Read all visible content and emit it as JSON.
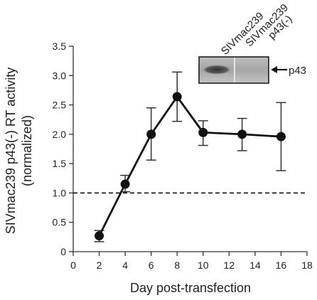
{
  "chart_data": {
    "type": "line",
    "xlabel": "Day post-transfection",
    "ylabel_line1": "SIVmac239 p43(-) RT activity",
    "ylabel_line2": "(normalized)",
    "xlim": [
      0,
      18
    ],
    "ylim": [
      0,
      3.5
    ],
    "x_ticks": [
      "0",
      "2",
      "4",
      "6",
      "8",
      "10",
      "12",
      "14",
      "16",
      "18"
    ],
    "y_ticks": [
      "0",
      "0.5",
      "1.0",
      "1.5",
      "2.0",
      "2.5",
      "3.0",
      "3.5"
    ],
    "grid": false,
    "reference_line": {
      "y": 1.0,
      "style": "dashed"
    },
    "series": [
      {
        "x": [
          2,
          4,
          6,
          8,
          10,
          13,
          16
        ],
        "y": [
          0.27,
          1.15,
          2.0,
          2.64,
          2.03,
          2.0,
          1.96
        ],
        "error_low": [
          0.17,
          1.02,
          1.56,
          2.22,
          1.81,
          1.72,
          1.38
        ],
        "error_high": [
          0.36,
          1.3,
          2.45,
          3.06,
          2.23,
          2.27,
          2.54
        ]
      }
    ],
    "inset": {
      "lane_labels": [
        "SIVmac239",
        "SIVmac239\np43(-)"
      ],
      "band_label": "p43"
    }
  },
  "colors": {
    "line": "#111111",
    "axis": "#333333",
    "text": "#222222",
    "blot_bg": "#c8c8c8"
  }
}
